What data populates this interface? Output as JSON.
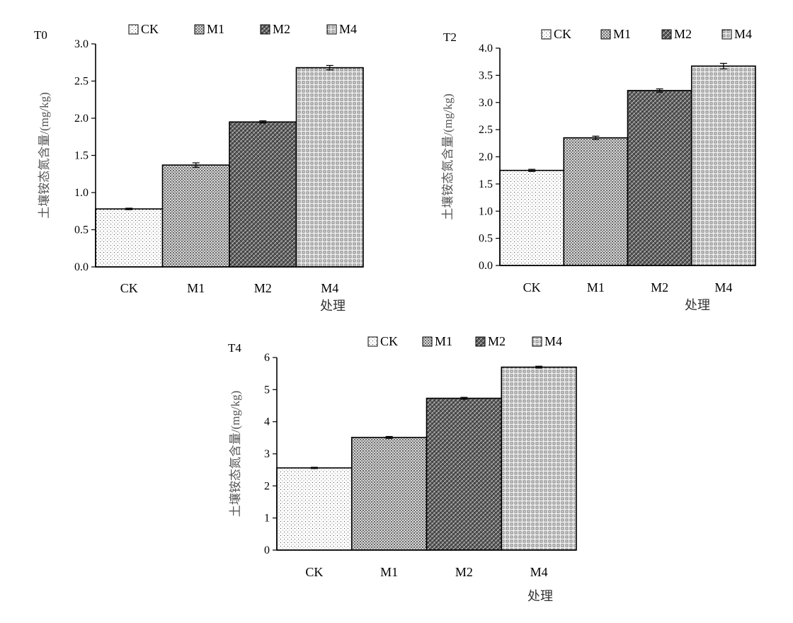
{
  "chart_data": [
    {
      "type": "bar",
      "title": "T0",
      "categories": [
        "CK",
        "M1",
        "M2",
        "M4"
      ],
      "values": [
        0.78,
        1.37,
        1.95,
        2.68
      ],
      "errors": [
        0.01,
        0.03,
        0.015,
        0.03
      ],
      "ylim": [
        0,
        3.0
      ],
      "yticks": [
        "0.0",
        "0.5",
        "1.0",
        "1.5",
        "2.0",
        "2.5",
        "3.0"
      ],
      "ylabel": "土壤铵态氮含量/(mg/kg)",
      "xlabel": "处理",
      "legend": [
        "CK",
        "M1",
        "M2",
        "M4"
      ]
    },
    {
      "type": "bar",
      "title": "T2",
      "categories": [
        "CK",
        "M1",
        "M2",
        "M4"
      ],
      "values": [
        1.75,
        2.35,
        3.22,
        3.67
      ],
      "errors": [
        0.02,
        0.03,
        0.03,
        0.05
      ],
      "ylim": [
        0,
        4.0
      ],
      "yticks": [
        "0.0",
        "0.5",
        "1.0",
        "1.5",
        "2.0",
        "2.5",
        "3.0",
        "3.5",
        "4.0"
      ],
      "ylabel": "土壤铵态氮含量/(mg/kg)",
      "xlabel": "处理",
      "legend": [
        "CK",
        "M1",
        "M2",
        "M4"
      ]
    },
    {
      "type": "bar",
      "title": "T4",
      "categories": [
        "CK",
        "M1",
        "M2",
        "M4"
      ],
      "values": [
        2.56,
        3.51,
        4.73,
        5.7
      ],
      "errors": [
        0.02,
        0.03,
        0.03,
        0.03
      ],
      "ylim": [
        0,
        6
      ],
      "yticks": [
        "0",
        "1",
        "2",
        "3",
        "4",
        "5",
        "6"
      ],
      "ylabel": "土壤铵态氮含量/(mg/kg)",
      "xlabel": "处理",
      "legend": [
        "CK",
        "M1",
        "M2",
        "M4"
      ]
    }
  ]
}
